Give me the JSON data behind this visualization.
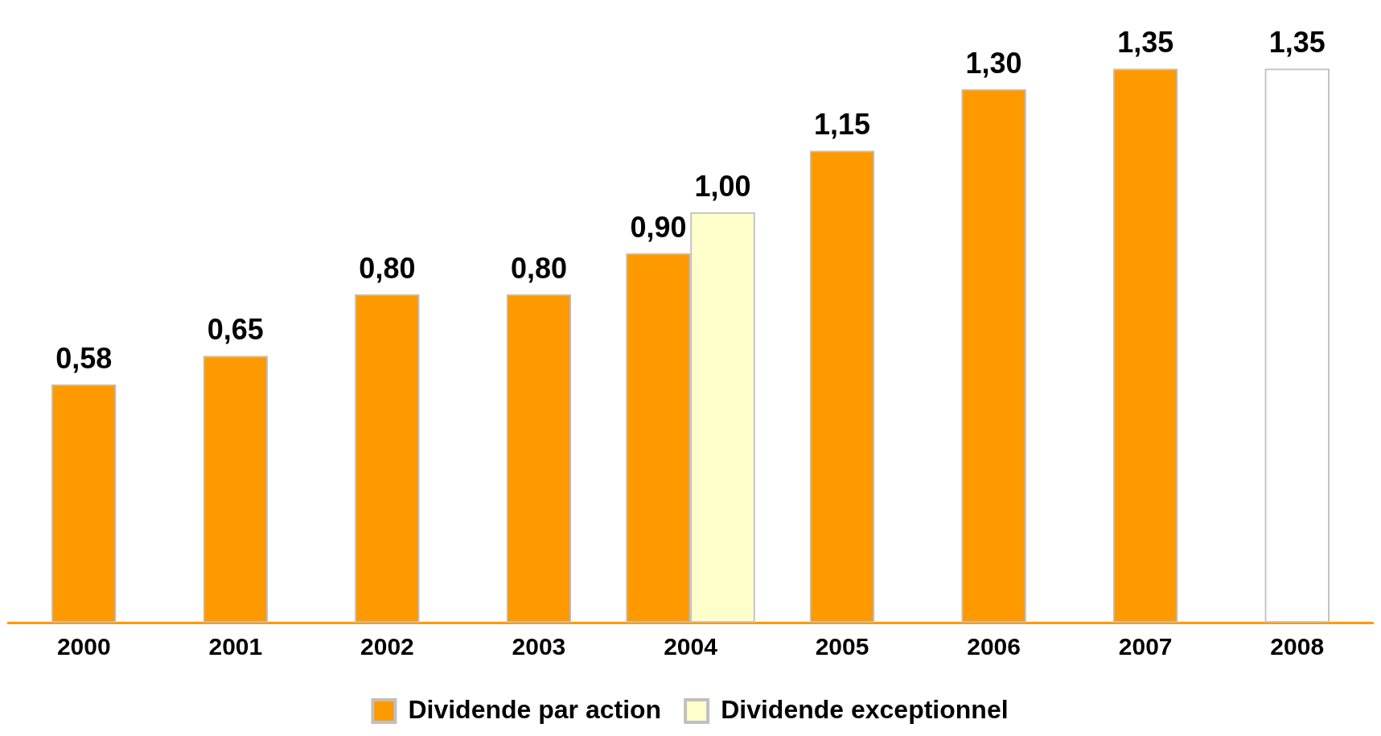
{
  "chart_data": {
    "type": "bar",
    "categories": [
      "2000",
      "2001",
      "2002",
      "2003",
      "2004",
      "2005",
      "2006",
      "2007",
      "2008"
    ],
    "series": [
      {
        "name": "Dividende par action",
        "color": "#ff9900",
        "colors": [
          "#ff9900",
          "#ff9900",
          "#ff9900",
          "#ff9900",
          "#ff9900",
          "#ff9900",
          "#ff9900",
          "#ff9900",
          "#ffffff"
        ],
        "values": [
          0.58,
          0.65,
          0.8,
          0.8,
          0.9,
          1.15,
          1.3,
          1.35,
          1.35
        ],
        "value_labels": [
          "0,58",
          "0,65",
          "0,80",
          "0,80",
          "0,90",
          "1,15",
          "1,30",
          "1,35",
          "1,35"
        ]
      },
      {
        "name": "Dividende exceptionnel",
        "color": "#ffffcc",
        "values": [
          null,
          null,
          null,
          null,
          1.0,
          null,
          null,
          null,
          null
        ],
        "value_labels": [
          null,
          null,
          null,
          null,
          "1,00",
          null,
          null,
          null,
          null
        ]
      }
    ],
    "grid": false,
    "legend": "bottom",
    "tick_labels": "x"
  }
}
